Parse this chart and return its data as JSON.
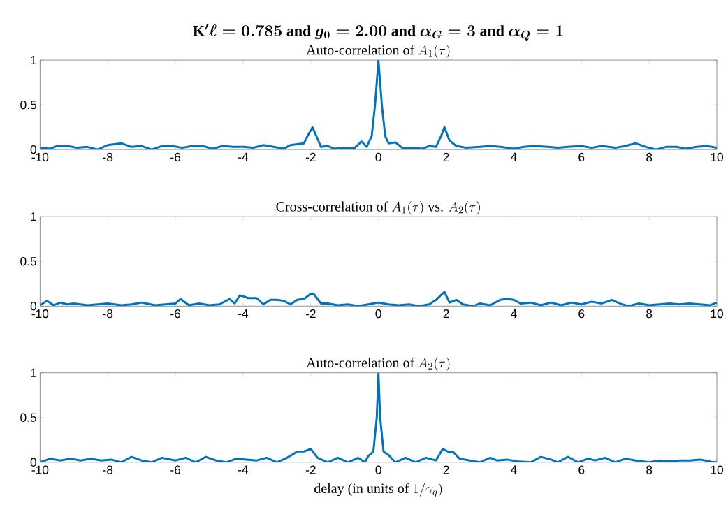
{
  "chart_data": [
    {
      "type": "line",
      "title": "\\mathrm{K}^{\\prime}\\ell = 0.785 \\text{ and } g_0 = 2.00 \\text{ and } \\alpha_G = 3 \\text{ and } \\alpha_Q = 1",
      "subtitle": "\\text{Auto-correlation of } A_1(\\tau)",
      "color": "#0072bd",
      "xlim": [
        -10,
        10
      ],
      "ylim": [
        0,
        1
      ],
      "xticks": [
        -10,
        -8,
        -6,
        -4,
        -2,
        0,
        2,
        4,
        6,
        8,
        10
      ],
      "yticks": [
        0,
        0.5,
        1
      ],
      "x": [
        -10,
        -9.7,
        -9.5,
        -9.2,
        -8.9,
        -8.6,
        -8.3,
        -8.0,
        -7.6,
        -7.3,
        -7.0,
        -6.7,
        -6.4,
        -6.1,
        -5.8,
        -5.5,
        -5.2,
        -4.9,
        -4.6,
        -4.3,
        -4.0,
        -3.7,
        -3.4,
        -3.1,
        -2.8,
        -2.6,
        -2.4,
        -2.2,
        -2.1,
        -1.95,
        -1.8,
        -1.7,
        -1.5,
        -1.3,
        -1.0,
        -0.7,
        -0.5,
        -0.35,
        -0.2,
        -0.1,
        0,
        0.1,
        0.2,
        0.3,
        0.5,
        0.7,
        1.0,
        1.3,
        1.5,
        1.7,
        1.85,
        1.95,
        2.1,
        2.3,
        2.6,
        3.0,
        3.3,
        3.6,
        4.0,
        4.3,
        4.6,
        5.0,
        5.3,
        5.6,
        6.0,
        6.3,
        6.6,
        7.0,
        7.3,
        7.6,
        7.9,
        8.2,
        8.5,
        8.8,
        9.1,
        9.4,
        9.7,
        10
      ],
      "values": [
        0.02,
        0.01,
        0.04,
        0.04,
        0.02,
        0.03,
        0.0,
        0.05,
        0.07,
        0.03,
        0.04,
        0.0,
        0.04,
        0.04,
        0.02,
        0.04,
        0.04,
        0.01,
        0.04,
        0.03,
        0.03,
        0.02,
        0.05,
        0.03,
        0.01,
        0.05,
        0.06,
        0.07,
        0.15,
        0.25,
        0.12,
        0.03,
        0.04,
        0.01,
        0.02,
        0.02,
        0.09,
        0.03,
        0.15,
        0.5,
        1.0,
        0.5,
        0.15,
        0.07,
        0.08,
        0.02,
        0.02,
        0.01,
        0.04,
        0.03,
        0.15,
        0.25,
        0.1,
        0.04,
        0.02,
        0.03,
        0.04,
        0.03,
        0.01,
        0.03,
        0.04,
        0.03,
        0.02,
        0.03,
        0.04,
        0.02,
        0.04,
        0.02,
        0.04,
        0.07,
        0.03,
        0.0,
        0.03,
        0.03,
        0.01,
        0.03,
        0.04,
        0.02
      ]
    },
    {
      "type": "line",
      "title": "\\text{Cross-correlation of } A_1(\\tau) \\text{ vs. } A_2(\\tau)",
      "color": "#0072bd",
      "xlim": [
        -10,
        10
      ],
      "ylim": [
        0,
        1
      ],
      "xticks": [
        -10,
        -8,
        -6,
        -4,
        -2,
        0,
        2,
        4,
        6,
        8,
        10
      ],
      "yticks": [
        0,
        0.5,
        1
      ],
      "x": [
        -10,
        -9.8,
        -9.6,
        -9.4,
        -9.2,
        -9.0,
        -8.6,
        -8.3,
        -8.0,
        -7.6,
        -7.3,
        -7.0,
        -6.6,
        -6.3,
        -6.0,
        -5.85,
        -5.6,
        -5.3,
        -5.0,
        -4.7,
        -4.4,
        -4.25,
        -4.1,
        -4.0,
        -3.85,
        -3.6,
        -3.4,
        -3.2,
        -3.0,
        -2.8,
        -2.6,
        -2.4,
        -2.2,
        -2.0,
        -1.9,
        -1.7,
        -1.5,
        -1.2,
        -0.9,
        -0.6,
        -0.3,
        0,
        0.3,
        0.6,
        0.9,
        1.2,
        1.5,
        1.7,
        1.95,
        2.1,
        2.3,
        2.5,
        2.8,
        3.0,
        3.3,
        3.6,
        3.8,
        4.0,
        4.2,
        4.5,
        4.8,
        5.1,
        5.4,
        5.7,
        6.0,
        6.3,
        6.6,
        6.9,
        7.2,
        7.4,
        7.7,
        8.0,
        8.3,
        8.6,
        8.9,
        9.2,
        9.5,
        9.8,
        10
      ],
      "values": [
        0.01,
        0.06,
        0.01,
        0.04,
        0.02,
        0.03,
        0.01,
        0.02,
        0.03,
        0.01,
        0.02,
        0.04,
        0.01,
        0.02,
        0.03,
        0.08,
        0.01,
        0.03,
        0.01,
        0.02,
        0.08,
        0.03,
        0.12,
        0.11,
        0.09,
        0.09,
        0.02,
        0.07,
        0.07,
        0.06,
        0.02,
        0.07,
        0.08,
        0.14,
        0.13,
        0.03,
        0.03,
        0.01,
        0.02,
        0.0,
        0.02,
        0.04,
        0.02,
        0.01,
        0.02,
        0.0,
        0.02,
        0.07,
        0.16,
        0.04,
        0.07,
        0.02,
        0.0,
        0.03,
        0.01,
        0.07,
        0.08,
        0.07,
        0.03,
        0.04,
        0.01,
        0.04,
        0.01,
        0.04,
        0.02,
        0.05,
        0.03,
        0.07,
        0.02,
        0.0,
        0.03,
        0.01,
        0.02,
        0.03,
        0.02,
        0.03,
        0.02,
        0.01,
        0.04
      ]
    },
    {
      "type": "line",
      "title": "\\text{Auto-correlation of } A_2(\\tau)",
      "xlabel": "\\text{delay (in units of } 1/\\gamma_q)",
      "color": "#0072bd",
      "xlim": [
        -10,
        10
      ],
      "ylim": [
        0,
        1
      ],
      "xticks": [
        -10,
        -8,
        -6,
        -4,
        -2,
        0,
        2,
        4,
        6,
        8,
        10
      ],
      "yticks": [
        0,
        0.5,
        1
      ],
      "x": [
        -10,
        -9.7,
        -9.4,
        -9.1,
        -8.8,
        -8.5,
        -8.2,
        -7.9,
        -7.6,
        -7.3,
        -7.0,
        -6.7,
        -6.4,
        -6.0,
        -5.7,
        -5.4,
        -5.1,
        -4.8,
        -4.5,
        -4.2,
        -3.9,
        -3.6,
        -3.3,
        -3.0,
        -2.7,
        -2.4,
        -2.2,
        -2.0,
        -1.8,
        -1.5,
        -1.2,
        -0.9,
        -0.6,
        -0.4,
        -0.3,
        -0.15,
        -0.05,
        0,
        0.05,
        0.15,
        0.3,
        0.5,
        0.8,
        1.1,
        1.4,
        1.7,
        1.9,
        2.1,
        2.2,
        2.4,
        2.7,
        3.0,
        3.3,
        3.5,
        3.8,
        4.1,
        4.5,
        4.8,
        5.1,
        5.3,
        5.6,
        5.9,
        6.2,
        6.4,
        6.7,
        7.0,
        7.3,
        7.6,
        8.0,
        8.3,
        8.6,
        8.9,
        9.2,
        9.5,
        9.8,
        10
      ],
      "values": [
        0.0,
        0.04,
        0.02,
        0.04,
        0.02,
        0.04,
        0.02,
        0.03,
        0.0,
        0.06,
        0.02,
        0.0,
        0.05,
        0.02,
        0.05,
        0.0,
        0.06,
        0.02,
        0.0,
        0.04,
        0.03,
        0.02,
        0.05,
        0.0,
        0.05,
        0.12,
        0.12,
        0.15,
        0.05,
        0.0,
        0.05,
        0.0,
        0.05,
        0.0,
        0.07,
        0.12,
        0.5,
        1.0,
        0.5,
        0.12,
        0.08,
        0.0,
        0.05,
        0.0,
        0.05,
        0.02,
        0.15,
        0.11,
        0.12,
        0.04,
        0.02,
        0.0,
        0.05,
        0.02,
        0.03,
        0.01,
        0.0,
        0.06,
        0.03,
        0.0,
        0.06,
        0.0,
        0.04,
        0.02,
        0.05,
        0.0,
        0.04,
        0.02,
        0.0,
        0.02,
        0.01,
        0.02,
        0.02,
        0.03,
        0.01,
        0.0
      ]
    }
  ]
}
